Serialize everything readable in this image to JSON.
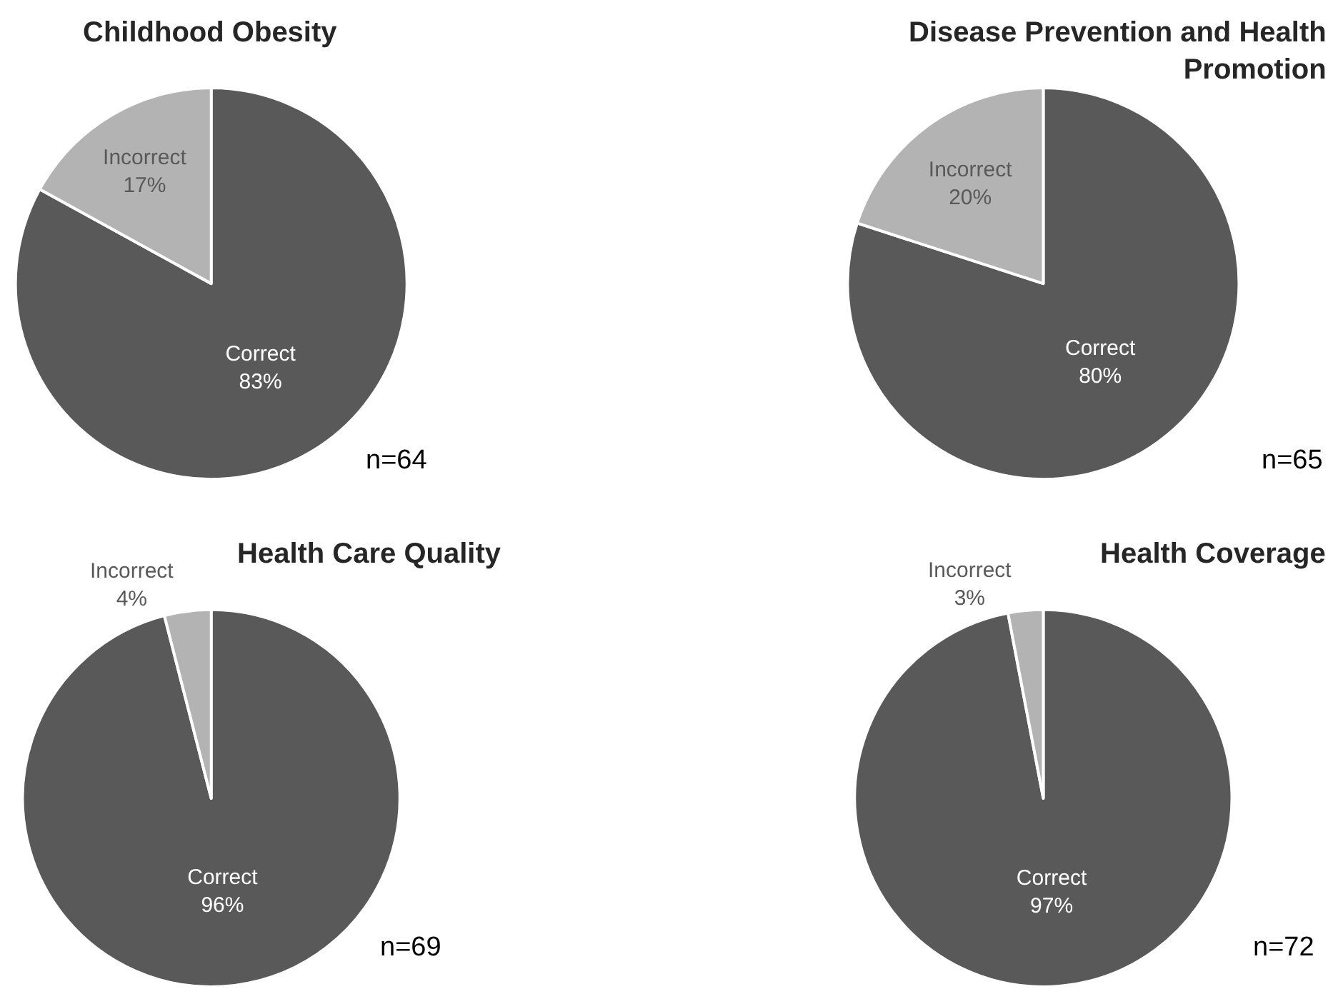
{
  "chart_data": [
    {
      "type": "pie",
      "title": "Childhood Obesity",
      "categories": [
        "Correct",
        "Incorrect"
      ],
      "values": [
        83,
        17
      ],
      "value_labels": [
        "83%",
        "17%"
      ],
      "colors": [
        "#595959",
        "#b3b3b3"
      ],
      "annotations": [
        "n=64"
      ],
      "legend": false
    },
    {
      "type": "pie",
      "title": "Disease Prevention and Health Promotion",
      "categories": [
        "Correct",
        "Incorrect"
      ],
      "values": [
        80,
        20
      ],
      "value_labels": [
        "80%",
        "20%"
      ],
      "colors": [
        "#595959",
        "#b3b3b3"
      ],
      "annotations": [
        "n=65"
      ],
      "legend": false
    },
    {
      "type": "pie",
      "title": "Health Care Quality",
      "categories": [
        "Correct",
        "Incorrect"
      ],
      "values": [
        96,
        4
      ],
      "value_labels": [
        "96%",
        "4%"
      ],
      "colors": [
        "#595959",
        "#b3b3b3"
      ],
      "annotations": [
        "n=69"
      ],
      "legend": false
    },
    {
      "type": "pie",
      "title": "Health Coverage",
      "categories": [
        "Correct",
        "Incorrect"
      ],
      "values": [
        97,
        3
      ],
      "value_labels": [
        "97%",
        "3%"
      ],
      "colors": [
        "#595959",
        "#b3b3b3"
      ],
      "annotations": [
        "n=72"
      ],
      "legend": false
    }
  ]
}
